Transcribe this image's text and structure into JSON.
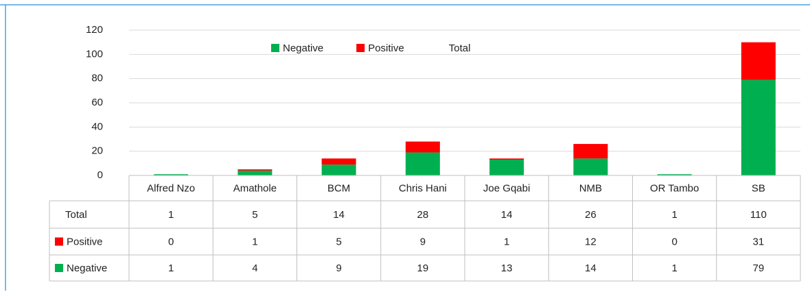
{
  "chart_data": {
    "type": "stacked_bar",
    "categories": [
      "Alfred Nzo",
      "Amathole",
      "BCM",
      "Chris Hani",
      "Joe Gqabi",
      "NMB",
      "OR Tambo",
      "SB"
    ],
    "series": [
      {
        "name": "Negative",
        "color": "#00b050",
        "values": [
          1,
          4,
          9,
          19,
          13,
          14,
          1,
          79
        ]
      },
      {
        "name": "Positive",
        "color": "#ff0000",
        "values": [
          0,
          1,
          5,
          9,
          1,
          12,
          0,
          31
        ]
      },
      {
        "name": "Total",
        "values": [
          1,
          5,
          14,
          28,
          14,
          26,
          1,
          110
        ]
      }
    ],
    "ylim": [
      0,
      120
    ],
    "yticks": [
      0,
      20,
      40,
      60,
      80,
      100,
      120
    ],
    "grid": true
  }
}
